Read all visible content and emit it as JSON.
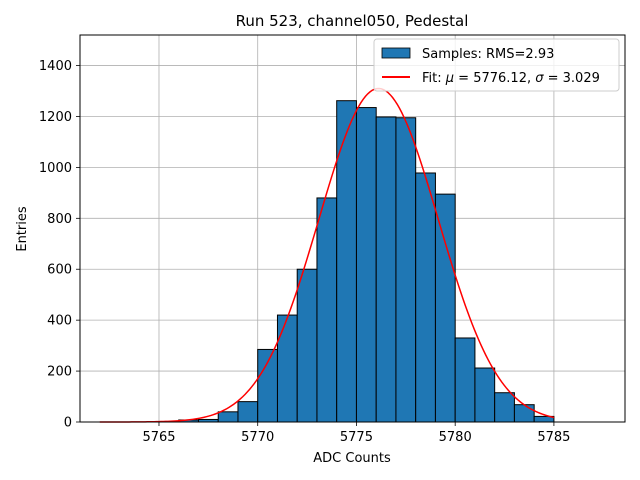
{
  "chart_data": {
    "type": "bar",
    "title": "Run 523, channel050, Pedestal",
    "xlabel": "ADC Counts",
    "ylabel": "Entries",
    "xlim": [
      5761,
      5788.6
    ],
    "ylim": [
      0,
      1520
    ],
    "x_ticks": [
      5765,
      5770,
      5775,
      5780,
      5785
    ],
    "y_ticks": [
      0,
      200,
      400,
      600,
      800,
      1000,
      1200,
      1400
    ],
    "grid": true,
    "bin_width": 1,
    "bin_left_edges": [
      5766,
      5767,
      5768,
      5769,
      5770,
      5771,
      5772,
      5773,
      5774,
      5775,
      5776,
      5777,
      5778,
      5779,
      5780,
      5781,
      5782,
      5783,
      5784
    ],
    "values": [
      8,
      10,
      40,
      80,
      285,
      420,
      600,
      880,
      1262,
      1235,
      1198,
      1195,
      978,
      895,
      330,
      212,
      115,
      68,
      22
    ],
    "bar_color": "#1f77b4",
    "fit": {
      "type": "gaussian",
      "mu": 5776.12,
      "sigma": 3.029,
      "amplitude": 1310,
      "x_range": [
        5762,
        5785
      ],
      "color": "#ff0000"
    },
    "legend": {
      "position": "top-right",
      "entries": [
        {
          "label": "Samples: RMS=2.93",
          "kind": "patch"
        },
        {
          "label_prefix": "Fit: ",
          "mu_symbol": "μ",
          "mu_text": " = 5776.12, ",
          "sigma_symbol": "σ",
          "sigma_text": " = 3.029",
          "kind": "line"
        }
      ]
    }
  }
}
